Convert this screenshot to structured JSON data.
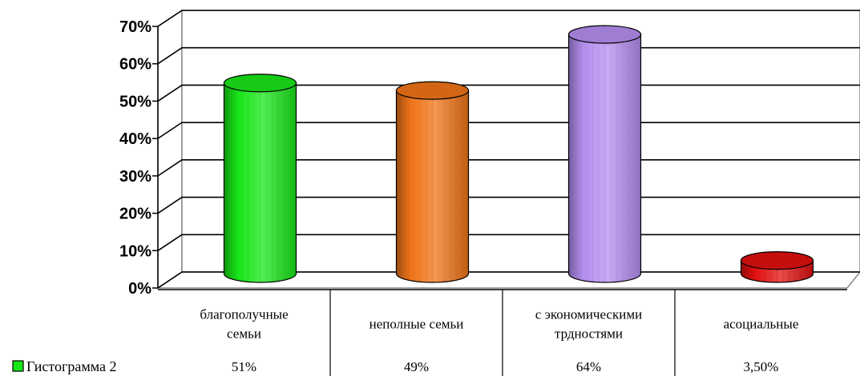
{
  "chart_data": {
    "type": "bar",
    "style": "3d-cylinder",
    "categories": [
      [
        "благополучные",
        "семьи"
      ],
      [
        "неполные семьи"
      ],
      [
        "с экономическими",
        "трдностями"
      ],
      [
        "асоциальные"
      ]
    ],
    "series": [
      {
        "name": "Гистограмма 2",
        "values": [
          51,
          49,
          64,
          3.5
        ],
        "value_labels": [
          "51%",
          "49%",
          "64%",
          "3,50%"
        ]
      }
    ],
    "bar_colors": [
      "#19e619",
      "#f07418",
      "#b48ef0",
      "#e01010"
    ],
    "legend_color": "#19e619",
    "ylim": [
      0,
      70
    ],
    "yticks": [
      "0%",
      "10%",
      "20%",
      "30%",
      "40%",
      "50%",
      "60%",
      "70%"
    ],
    "grid": true,
    "legend": "bottom-left, inside data table"
  }
}
